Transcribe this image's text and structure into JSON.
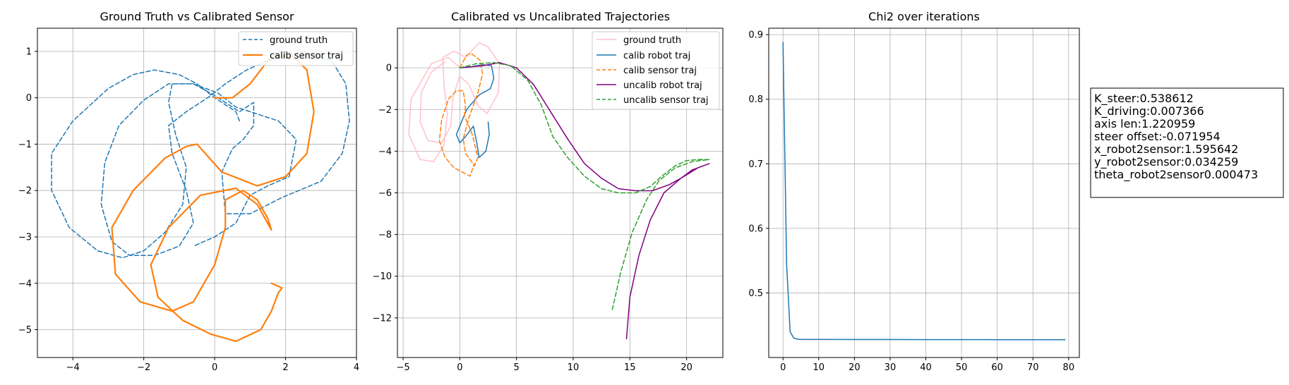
{
  "figure": {
    "params_box_lines": [
      "K_steer:0.538612",
      "K_driving:0.007366",
      "axis len:1.220959",
      "steer offset:-0.071954",
      "x_robot2sensor:1.595642",
      "y_robot2sensor:0.034259",
      "theta_robot2sensor0.000473"
    ]
  },
  "colors": {
    "blue": "#1f77b4",
    "orange": "#ff7f0e",
    "green": "#2ca02c",
    "purple": "#800080",
    "pink": "#ffc0cb",
    "grid": "#b0b0b0"
  },
  "chart_data": [
    {
      "type": "line",
      "title": "Ground Truth vs Calibrated Sensor",
      "xlim": [
        -5.0,
        4.0
      ],
      "ylim": [
        -5.6,
        1.5
      ],
      "xticks": [
        -4,
        -2,
        0,
        2,
        4
      ],
      "yticks": [
        -5,
        -4,
        -3,
        -2,
        -1,
        0,
        1
      ],
      "xtick_labels": [
        "−4",
        "−2",
        "0",
        "2",
        "4"
      ],
      "ytick_labels": [
        "−5",
        "−4",
        "−3",
        "−2",
        "−1",
        "0",
        "1"
      ],
      "legend": "top-right",
      "series": [
        {
          "name": "ground truth",
          "color": "blue",
          "dash": true,
          "width": 1.5,
          "points": [
            [
              0.7,
              -0.5
            ],
            [
              0.6,
              -0.3
            ],
            [
              0.4,
              -0.2
            ],
            [
              0.2,
              -0.1
            ],
            [
              0,
              0
            ],
            [
              -0.5,
              0.3
            ],
            [
              -1,
              0.5
            ],
            [
              -1.7,
              0.6
            ],
            [
              -2.3,
              0.5
            ],
            [
              -3,
              0.2
            ],
            [
              -4,
              -0.5
            ],
            [
              -4.6,
              -1.2
            ],
            [
              -4.6,
              -2
            ],
            [
              -4.1,
              -2.8
            ],
            [
              -3.3,
              -3.3
            ],
            [
              -2.6,
              -3.45
            ],
            [
              -2,
              -3.3
            ],
            [
              -1.4,
              -2.9
            ],
            [
              -0.9,
              -2.3
            ],
            [
              -0.8,
              -1.5
            ],
            [
              -1.1,
              -0.8
            ],
            [
              -1.3,
              -0.1
            ],
            [
              -1.2,
              0.3
            ],
            [
              -0.6,
              0.3
            ],
            [
              0,
              0.05
            ],
            [
              0.7,
              -0.3
            ],
            [
              1.1,
              -0.1
            ],
            [
              1.1,
              -0.6
            ],
            [
              0.8,
              -0.9
            ],
            [
              0.5,
              -1.1
            ],
            [
              0.2,
              -1.6
            ],
            [
              0.3,
              -2.5
            ],
            [
              1,
              -2.5
            ],
            [
              1.9,
              -2.15
            ],
            [
              3,
              -1.8
            ],
            [
              3.6,
              -1.2
            ],
            [
              3.8,
              -0.5
            ],
            [
              3.7,
              0.3
            ],
            [
              3.3,
              0.8
            ],
            [
              2.5,
              1
            ],
            [
              1.5,
              0.8
            ],
            [
              0.9,
              0.6
            ],
            [
              0.3,
              0.3
            ],
            [
              -0.2,
              0
            ],
            [
              -0.8,
              -0.3
            ],
            [
              -1.3,
              -0.6
            ],
            [
              -1.2,
              -1.2
            ],
            [
              -0.8,
              -2
            ],
            [
              -0.6,
              -2.7
            ],
            [
              -1,
              -3.2
            ],
            [
              -1.7,
              -3.4
            ],
            [
              -2.4,
              -3.4
            ],
            [
              -2.9,
              -3.1
            ],
            [
              -3.2,
              -2.3
            ],
            [
              -3.1,
              -1.4
            ],
            [
              -2.7,
              -0.6
            ],
            [
              -2,
              -0.05
            ],
            [
              -1.3,
              0.3
            ],
            [
              -0.6,
              0.3
            ],
            [
              0.1,
              0.1
            ],
            [
              0.6,
              -0.2
            ],
            [
              1.8,
              -0.5
            ],
            [
              2.3,
              -0.9
            ],
            [
              2.1,
              -1.7
            ],
            [
              1.5,
              -1.9
            ],
            [
              1,
              -2.1
            ],
            [
              0.6,
              -2.7
            ],
            [
              0,
              -3
            ],
            [
              -0.6,
              -3.2
            ]
          ]
        },
        {
          "name": "calib sensor traj",
          "color": "orange",
          "dash": false,
          "width": 2.2,
          "points": [
            [
              0,
              0
            ],
            [
              0.5,
              0
            ],
            [
              1,
              0.3
            ],
            [
              1.6,
              0.9
            ],
            [
              2.2,
              0.9
            ],
            [
              2.6,
              0.6
            ],
            [
              2.8,
              -0.3
            ],
            [
              2.6,
              -1.2
            ],
            [
              2,
              -1.7
            ],
            [
              1.2,
              -1.9
            ],
            [
              0.2,
              -1.6
            ],
            [
              -0.5,
              -1
            ],
            [
              -0.8,
              -1.05
            ],
            [
              -1.4,
              -1.3
            ],
            [
              -2.3,
              -2
            ],
            [
              -2.9,
              -2.8
            ],
            [
              -2.8,
              -3.8
            ],
            [
              -2.1,
              -4.4
            ],
            [
              -1.2,
              -4.6
            ],
            [
              -0.6,
              -4.4
            ],
            [
              0,
              -3.6
            ],
            [
              0.3,
              -2.8
            ],
            [
              0.3,
              -2.2
            ],
            [
              0.8,
              -2
            ],
            [
              1.2,
              -2.2
            ],
            [
              1.5,
              -2.6
            ],
            [
              1.6,
              -2.85
            ],
            [
              1.2,
              -2.3
            ],
            [
              0.6,
              -1.95
            ],
            [
              -0.4,
              -2.1
            ],
            [
              -1.3,
              -2.8
            ],
            [
              -1.8,
              -3.6
            ],
            [
              -1.6,
              -4.3
            ],
            [
              -0.9,
              -4.8
            ],
            [
              -0.1,
              -5.1
            ],
            [
              0.6,
              -5.25
            ],
            [
              1.3,
              -5
            ],
            [
              1.6,
              -4.6
            ],
            [
              1.8,
              -4.2
            ],
            [
              1.9,
              -4.1
            ],
            [
              1.6,
              -4
            ]
          ]
        }
      ]
    },
    {
      "type": "line",
      "title": "Calibrated vs Uncalibrated Trajectories",
      "xlim": [
        -5.5,
        23.2
      ],
      "ylim": [
        -13.9,
        1.9
      ],
      "xticks": [
        -5,
        0,
        5,
        10,
        15,
        20
      ],
      "yticks": [
        -12,
        -10,
        -8,
        -6,
        -4,
        -2,
        0
      ],
      "xtick_labels": [
        "−5",
        "0",
        "5",
        "10",
        "15",
        "20"
      ],
      "ytick_labels": [
        "−12",
        "−10",
        "−8",
        "−6",
        "−4",
        "−2",
        "0"
      ],
      "legend": "top-right",
      "series": [
        {
          "name": "ground truth",
          "color": "pink",
          "dash": false,
          "width": 1.5,
          "points": [
            [
              0,
              0
            ],
            [
              -1,
              0.5
            ],
            [
              -2.5,
              0.2
            ],
            [
              -4.3,
              -1.5
            ],
            [
              -4.5,
              -3.2
            ],
            [
              -3.5,
              -4.4
            ],
            [
              -2.3,
              -4.5
            ],
            [
              -1.4,
              -3.7
            ],
            [
              -1.1,
              -2.2
            ],
            [
              -1.4,
              -0.8
            ],
            [
              -1.5,
              0.5
            ],
            [
              -0.5,
              0.8
            ],
            [
              0.5,
              0.5
            ],
            [
              1.7,
              1.2
            ],
            [
              2.5,
              1
            ],
            [
              3.5,
              0.2
            ],
            [
              3.4,
              -1.2
            ],
            [
              2.4,
              -2.2
            ],
            [
              1.6,
              -1.8
            ],
            [
              0.8,
              -0.8
            ],
            [
              0,
              -0.4
            ],
            [
              -0.6,
              -1.4
            ],
            [
              -0.8,
              -2.8
            ],
            [
              -1.6,
              -3.6
            ],
            [
              -2.8,
              -3.5
            ],
            [
              -3.5,
              -2.6
            ],
            [
              -3.4,
              -1.2
            ],
            [
              -2.5,
              -0.2
            ],
            [
              -1.3,
              0.3
            ]
          ]
        },
        {
          "name": "calib robot traj",
          "color": "blue",
          "dash": false,
          "width": 1.5,
          "points": [
            [
              0,
              0
            ],
            [
              1,
              0.05
            ],
            [
              2,
              0.15
            ],
            [
              2.8,
              0.1
            ],
            [
              3,
              -0.5
            ],
            [
              2.7,
              -1
            ],
            [
              1.7,
              -1.3
            ],
            [
              0.6,
              -2
            ],
            [
              -0.3,
              -3.2
            ],
            [
              0,
              -3.6
            ],
            [
              0.5,
              -3.3
            ],
            [
              1.2,
              -2.8
            ],
            [
              1.5,
              -3.6
            ],
            [
              1.7,
              -4.3
            ],
            [
              2.3,
              -4
            ],
            [
              2.6,
              -3.2
            ],
            [
              2.5,
              -2.6
            ]
          ]
        },
        {
          "name": "calib sensor traj",
          "color": "orange",
          "dash": true,
          "width": 1.5,
          "points": [
            [
              0,
              0
            ],
            [
              0.6,
              0.6
            ],
            [
              1,
              0.7
            ],
            [
              1.8,
              0.35
            ],
            [
              2,
              -0.3
            ],
            [
              1.6,
              -1.2
            ],
            [
              0.8,
              -2.4
            ],
            [
              0.3,
              -3.4
            ],
            [
              0.5,
              -4.1
            ],
            [
              1.3,
              -4.7
            ],
            [
              1.6,
              -4.3
            ],
            [
              1.1,
              -3.2
            ],
            [
              0.4,
              -2.3
            ],
            [
              0.5,
              -1.8
            ],
            [
              0.3,
              -1.1
            ],
            [
              -0.3,
              -1.1
            ],
            [
              -1,
              -1.5
            ],
            [
              -1.6,
              -2.5
            ],
            [
              -1.8,
              -3.5
            ],
            [
              -1.3,
              -4.3
            ],
            [
              -0.5,
              -4.8
            ],
            [
              0.2,
              -5
            ],
            [
              0.9,
              -5.2
            ],
            [
              1.3,
              -4.6
            ]
          ]
        },
        {
          "name": "uncalib robot traj",
          "color": "purple",
          "dash": false,
          "width": 1.5,
          "points": [
            [
              0,
              0
            ],
            [
              2,
              0.1
            ],
            [
              3.5,
              0.25
            ],
            [
              5,
              0
            ],
            [
              6.5,
              -0.8
            ],
            [
              8,
              -2.1
            ],
            [
              9.5,
              -3.4
            ],
            [
              11,
              -4.6
            ],
            [
              12.5,
              -5.3
            ],
            [
              14,
              -5.8
            ],
            [
              15.5,
              -5.9
            ],
            [
              17,
              -5.9
            ],
            [
              18.5,
              -5.6
            ],
            [
              19.5,
              -5.3
            ],
            [
              20.5,
              -4.9
            ],
            [
              21.5,
              -4.7
            ],
            [
              22,
              -4.6
            ],
            [
              21,
              -4.8
            ],
            [
              19.5,
              -5.3
            ],
            [
              18,
              -6
            ],
            [
              16.8,
              -7.3
            ],
            [
              15.8,
              -9
            ],
            [
              15,
              -11
            ],
            [
              14.7,
              -13
            ]
          ]
        },
        {
          "name": "uncalib sensor traj",
          "color": "green",
          "dash": true,
          "width": 1.5,
          "points": [
            [
              0,
              0
            ],
            [
              1.5,
              0.2
            ],
            [
              3,
              0.25
            ],
            [
              4.5,
              0.1
            ],
            [
              6,
              -0.6
            ],
            [
              7.2,
              -1.8
            ],
            [
              8.2,
              -3.3
            ],
            [
              9.5,
              -4.3
            ],
            [
              11,
              -5.2
            ],
            [
              12.5,
              -5.8
            ],
            [
              14,
              -6
            ],
            [
              15.5,
              -6
            ],
            [
              16.8,
              -5.7
            ],
            [
              17.8,
              -5.2
            ],
            [
              19,
              -4.7
            ],
            [
              20,
              -4.45
            ],
            [
              21,
              -4.4
            ],
            [
              22,
              -4.4
            ],
            [
              20.5,
              -4.5
            ],
            [
              19,
              -4.8
            ],
            [
              17.6,
              -5.4
            ],
            [
              16.5,
              -6.3
            ],
            [
              15.2,
              -7.9
            ],
            [
              14.2,
              -9.8
            ],
            [
              13.7,
              -11
            ],
            [
              13.4,
              -11.7
            ]
          ]
        }
      ]
    },
    {
      "type": "line",
      "title": "Chi2 over iterations",
      "xlim": [
        -4.0,
        83.0
      ],
      "ylim": [
        0.4,
        0.91
      ],
      "xticks": [
        0,
        10,
        20,
        30,
        40,
        50,
        60,
        70,
        80
      ],
      "yticks": [
        0.5,
        0.6,
        0.7,
        0.8,
        0.9
      ],
      "xtick_labels": [
        "0",
        "10",
        "20",
        "30",
        "40",
        "50",
        "60",
        "70",
        "80"
      ],
      "ytick_labels": [
        "0.5",
        "0.6",
        "0.7",
        "0.8",
        "0.9"
      ],
      "legend": "none",
      "series": [
        {
          "name": "chi2",
          "color": "blue",
          "dash": false,
          "width": 1.5,
          "points": [
            [
              0,
              0.888
            ],
            [
              1,
              0.545
            ],
            [
              2,
              0.44
            ],
            [
              3,
              0.43
            ],
            [
              4,
              0.4285
            ],
            [
              5,
              0.428
            ],
            [
              10,
              0.428
            ],
            [
              20,
              0.4278
            ],
            [
              40,
              0.4277
            ],
            [
              60,
              0.4276
            ],
            [
              79,
              0.4276
            ]
          ]
        }
      ]
    }
  ]
}
